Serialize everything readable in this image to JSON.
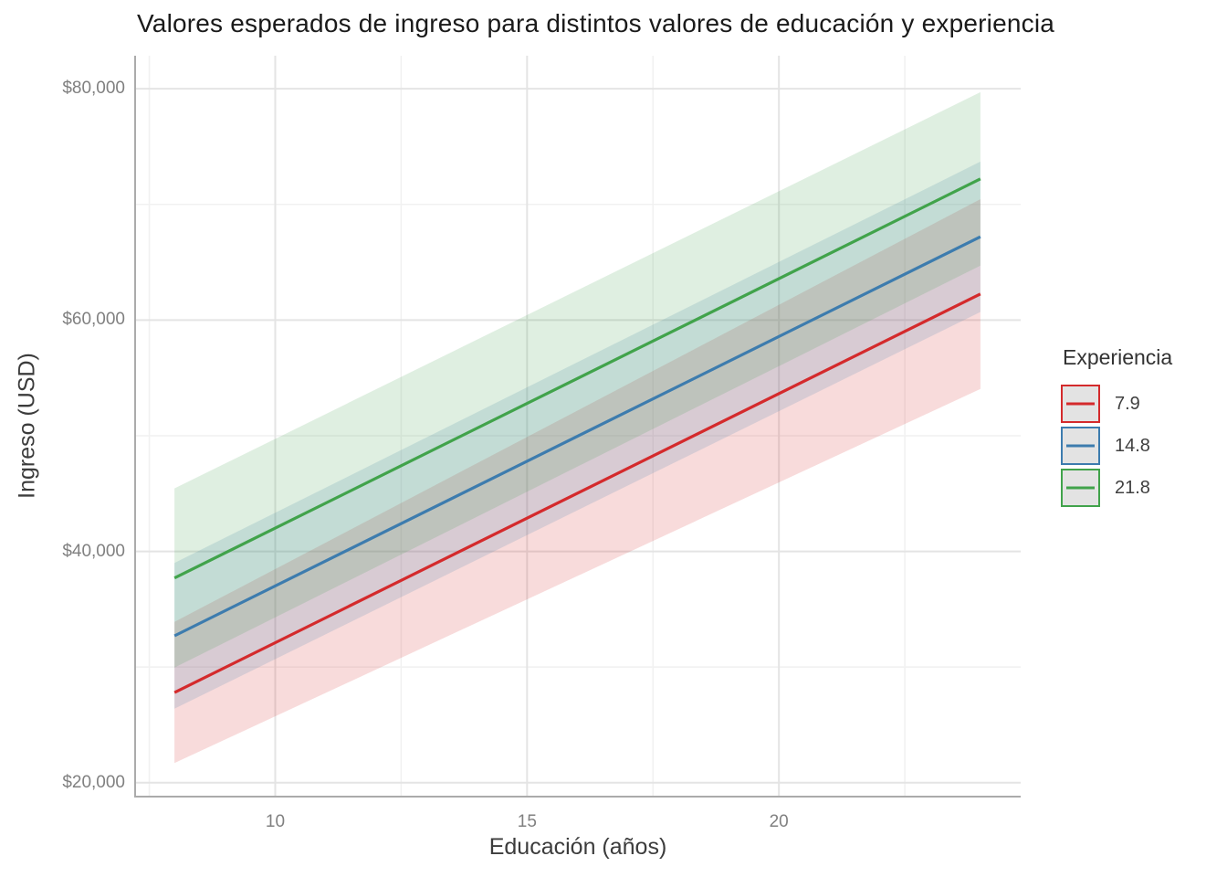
{
  "title": "Valores esperados de ingreso para distintos valores de educación y experiencia",
  "chart_data": {
    "type": "line",
    "title": "Valores esperados de ingreso para distintos valores de educación y experiencia",
    "xlabel": "Educación (años)",
    "ylabel": "Ingreso (USD)",
    "xlim": [
      7.2,
      24.8
    ],
    "ylim": [
      18800,
      82850
    ],
    "x_major_ticks": [
      10,
      15,
      20
    ],
    "x_minor_ticks": [
      7.5,
      12.5,
      17.5,
      22.5
    ],
    "x_tick_labels": [
      "10",
      "15",
      "20"
    ],
    "y_major_ticks": [
      20000,
      40000,
      60000,
      80000
    ],
    "y_minor_ticks": [
      30000,
      50000,
      70000
    ],
    "y_tick_labels": [
      "$20,000",
      "$40,000",
      "$60,000",
      "$80,000"
    ],
    "grid": true,
    "legend_title": "Experiencia",
    "legend_position": "right",
    "ribbon_opacity": 0.17,
    "series": [
      {
        "name": "7.9",
        "color": "#d42a2c",
        "x": [
          8,
          24
        ],
        "y": [
          27800,
          62250
        ],
        "lower": [
          21700,
          54050
        ],
        "upper": [
          33900,
          70450
        ]
      },
      {
        "name": "14.8",
        "color": "#3d7cae",
        "x": [
          8,
          24
        ],
        "y": [
          32700,
          67200
        ],
        "lower": [
          26400,
          60700
        ],
        "upper": [
          39000,
          73700
        ]
      },
      {
        "name": "21.8",
        "color": "#41a34b",
        "x": [
          8,
          24
        ],
        "y": [
          37700,
          72200
        ],
        "lower": [
          29950,
          64700
        ],
        "upper": [
          45450,
          79700
        ]
      }
    ],
    "style": {
      "grid_major_color": "#e4e4e4",
      "grid_minor_color": "#f1f1f1",
      "axis_line_color": "#ababab",
      "line_width": 3.2
    }
  },
  "legend": {
    "title": "Experiencia",
    "items": [
      {
        "label": "7.9"
      },
      {
        "label": "14.8"
      },
      {
        "label": "21.8"
      }
    ]
  }
}
